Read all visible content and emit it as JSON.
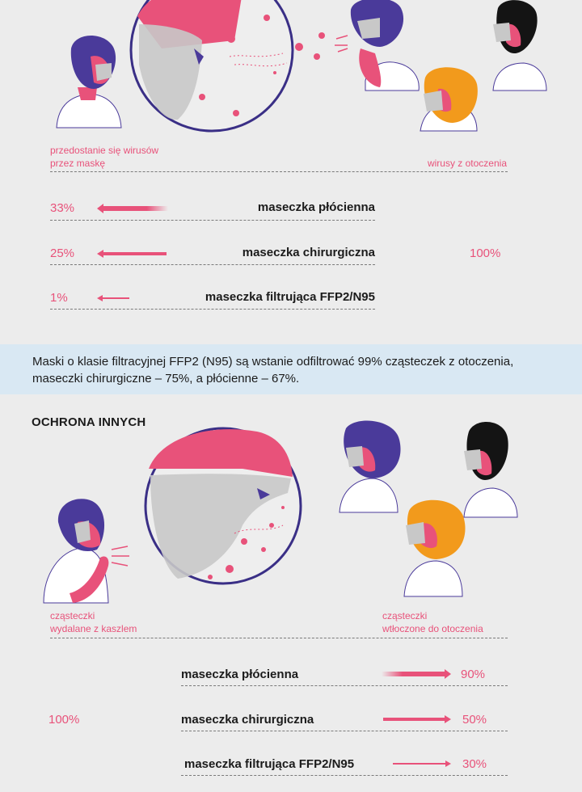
{
  "top": {
    "caption_left": [
      "przedostanie się wirusów",
      "przez maskę"
    ],
    "caption_right": "wirusy z otoczenia",
    "total": "100%",
    "rows": [
      {
        "percent": "33%",
        "label": "maseczka płócienna"
      },
      {
        "percent": "25%",
        "label": "maseczka chirurgiczna"
      },
      {
        "percent": "1%",
        "label": "maseczka filtrująca FFP2/N95"
      }
    ]
  },
  "info_band": {
    "text": "Maski o klasie filtracyjnej FFP2 (N95) są wstanie odfiltrować 99% cząsteczek z otoczenia, maseczki chirurgiczne – 75%, a płócienne – 67%."
  },
  "bottom": {
    "heading": "OCHRONA INNYCH",
    "caption_left": [
      "cząsteczki",
      "wydalane z kaszlem"
    ],
    "caption_right": [
      "cząsteczki",
      "wtłoczone do otoczenia"
    ],
    "total": "100%",
    "rows": [
      {
        "label": "maseczka płócienna",
        "percent": "90%"
      },
      {
        "label": "maseczka chirurgiczna",
        "percent": "50%"
      },
      {
        "label": "maseczka filtrująca FFP2/N95",
        "percent": "30%"
      }
    ]
  },
  "colors": {
    "accent": "#e8527a",
    "hair_purple": "#4a3a9a",
    "hair_black": "#141414",
    "hair_orange": "#f29a1c",
    "mask_gray": "#c8c8c8",
    "band": "#d9e8f3",
    "background": "#ececec"
  }
}
